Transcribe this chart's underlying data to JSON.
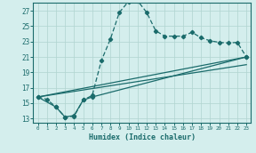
{
  "xlabel": "Humidex (Indice chaleur)",
  "background_color": "#d4eeed",
  "grid_color": "#b0d4d0",
  "line_color": "#1a6b6b",
  "xlim": [
    -0.5,
    23.5
  ],
  "ylim": [
    12.5,
    28.0
  ],
  "yticks": [
    13,
    15,
    17,
    19,
    21,
    23,
    25,
    27
  ],
  "xticks": [
    0,
    1,
    2,
    3,
    4,
    5,
    6,
    7,
    8,
    9,
    10,
    11,
    12,
    13,
    14,
    15,
    16,
    17,
    18,
    19,
    20,
    21,
    22,
    23
  ],
  "curve1_x": [
    0,
    1,
    2,
    3,
    4,
    5,
    6,
    7,
    8,
    9,
    10,
    11,
    12,
    13,
    14,
    15,
    16,
    17,
    18,
    19,
    20,
    21,
    22,
    23
  ],
  "curve1_y": [
    15.8,
    15.5,
    14.5,
    13.2,
    13.3,
    15.4,
    16.0,
    20.5,
    23.3,
    26.8,
    28.2,
    28.3,
    26.8,
    24.4,
    23.7,
    23.7,
    23.7,
    24.2,
    23.5,
    23.1,
    22.9,
    22.8,
    22.9,
    21.0
  ],
  "curve2_x": [
    0,
    2,
    3,
    4,
    5,
    6,
    23
  ],
  "curve2_y": [
    15.8,
    14.5,
    13.2,
    13.4,
    15.4,
    15.8,
    21.0
  ],
  "curve3_x": [
    0,
    23
  ],
  "curve3_y": [
    15.8,
    21.0
  ],
  "curve4_x": [
    0,
    23
  ],
  "curve4_y": [
    15.8,
    20.0
  ]
}
